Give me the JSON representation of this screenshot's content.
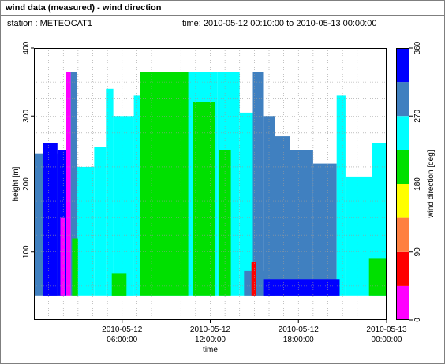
{
  "title": "wind data (measured) - wind direction",
  "station_label": "station : METEOCAT1",
  "time_label": "time: 2010-05-12 00:10:00 to 2010-05-13 00:00:00",
  "chart_data": {
    "type": "heatmap",
    "xlabel": "time",
    "ylabel": "height [m]",
    "colorbar_label": "wind direction [deg]",
    "xlim": [
      0,
      24
    ],
    "ylim": [
      0,
      400
    ],
    "x_ticks": [
      {
        "value": 6,
        "line1": "2010-05-12",
        "line2": "06:00:00"
      },
      {
        "value": 12,
        "line1": "2010-05-12",
        "line2": "12:00:00"
      },
      {
        "value": 18,
        "line1": "2010-05-12",
        "line2": "18:00:00"
      },
      {
        "value": 24,
        "line1": "2010-05-13",
        "line2": "00:00:00"
      }
    ],
    "y_ticks": [
      100,
      200,
      300,
      400
    ],
    "colorbar_ticks": [
      0,
      90,
      180,
      270,
      360
    ],
    "colorbar_bins": [
      {
        "from": 0,
        "to": 45,
        "color": "#ff00ff"
      },
      {
        "from": 45,
        "to": 90,
        "color": "#ff0000"
      },
      {
        "from": 90,
        "to": 135,
        "color": "#ff8040"
      },
      {
        "from": 135,
        "to": 180,
        "color": "#ffff00"
      },
      {
        "from": 180,
        "to": 225,
        "color": "#00e000"
      },
      {
        "from": 225,
        "to": 270,
        "color": "#00ffff"
      },
      {
        "from": 270,
        "to": 315,
        "color": "#4080c0"
      },
      {
        "from": 315,
        "to": 360,
        "color": "#0000ff"
      }
    ],
    "grid": true,
    "height_min": 35,
    "regions": [
      {
        "t0": 0.0,
        "t1": 2.0,
        "top": 245,
        "dir": 290
      },
      {
        "t0": 0.6,
        "t1": 1.6,
        "top": 260,
        "dir": 335
      },
      {
        "t0": 1.6,
        "t1": 2.2,
        "top": 250,
        "dir": 335
      },
      {
        "t0": 2.2,
        "t1": 2.5,
        "top": 365,
        "dir": 20
      },
      {
        "t0": 2.5,
        "t1": 2.9,
        "top": 365,
        "dir": 300
      },
      {
        "t0": 2.9,
        "t1": 4.1,
        "top": 225,
        "dir": 250
      },
      {
        "t0": 4.1,
        "t1": 4.9,
        "top": 255,
        "dir": 250
      },
      {
        "t0": 4.9,
        "t1": 5.4,
        "top": 340,
        "dir": 250
      },
      {
        "t0": 5.4,
        "t1": 6.8,
        "top": 300,
        "dir": 250
      },
      {
        "t0": 6.8,
        "t1": 7.8,
        "top": 330,
        "dir": 250
      },
      {
        "t0": 7.8,
        "t1": 12.5,
        "top": 365,
        "dir": 250
      },
      {
        "t0": 7.2,
        "t1": 10.5,
        "top": 365,
        "dir": 200
      },
      {
        "t0": 10.8,
        "t1": 12.3,
        "top": 320,
        "dir": 200
      },
      {
        "t0": 12.5,
        "t1": 14.0,
        "top": 365,
        "dir": 250
      },
      {
        "t0": 12.6,
        "t1": 13.4,
        "top": 250,
        "dir": 200
      },
      {
        "t0": 14.0,
        "t1": 14.9,
        "top": 305,
        "dir": 250
      },
      {
        "t0": 14.9,
        "t1": 15.6,
        "top": 365,
        "dir": 300
      },
      {
        "t0": 15.6,
        "t1": 16.4,
        "top": 300,
        "dir": 300
      },
      {
        "t0": 16.4,
        "t1": 17.4,
        "top": 270,
        "dir": 300
      },
      {
        "t0": 17.4,
        "t1": 19.0,
        "top": 250,
        "dir": 300
      },
      {
        "t0": 19.0,
        "t1": 20.6,
        "top": 230,
        "dir": 300
      },
      {
        "t0": 20.6,
        "t1": 21.2,
        "top": 330,
        "dir": 250
      },
      {
        "t0": 21.2,
        "t1": 23.0,
        "top": 210,
        "dir": 250
      },
      {
        "t0": 23.0,
        "t1": 24.0,
        "top": 260,
        "dir": 250
      },
      {
        "t0": 2.6,
        "t1": 3.0,
        "top": 120,
        "dir": 180
      },
      {
        "t0": 5.3,
        "t1": 6.3,
        "top": 68,
        "dir": 180
      },
      {
        "t0": 14.3,
        "t1": 15.7,
        "top": 72,
        "dir": 300
      },
      {
        "t0": 15.6,
        "t1": 20.8,
        "top": 60,
        "dir": 330
      },
      {
        "t0": 22.8,
        "t1": 24.0,
        "top": 90,
        "dir": 180
      },
      {
        "t0": 1.8,
        "t1": 2.1,
        "top": 150,
        "dir": 20
      },
      {
        "t0": 14.8,
        "t1": 15.1,
        "top": 85,
        "dir": 60
      }
    ]
  }
}
